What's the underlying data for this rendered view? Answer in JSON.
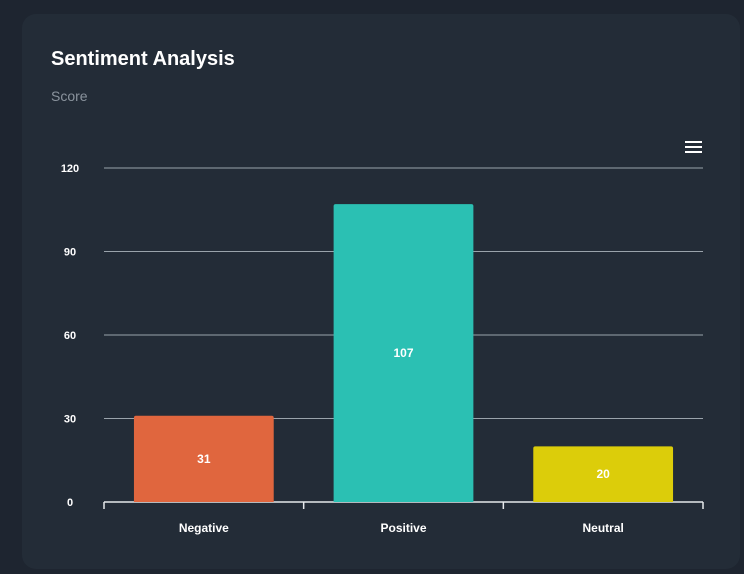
{
  "card": {
    "title": "Sentiment Analysis",
    "subtitle": "Score"
  },
  "toolbar": {
    "menu_icon": "hamburger-menu-icon"
  },
  "chart_data": {
    "type": "bar",
    "title": "",
    "xlabel": "",
    "ylabel": "",
    "categories": [
      "Negative",
      "Positive",
      "Neutral"
    ],
    "values": [
      31,
      107,
      20
    ],
    "colors": [
      "#e0663e",
      "#2bc0b3",
      "#dccd0a"
    ],
    "ylim": [
      0,
      120
    ],
    "yticks": [
      0,
      30,
      60,
      90,
      120
    ],
    "grid": true,
    "data_labels": true,
    "legend": "none"
  }
}
